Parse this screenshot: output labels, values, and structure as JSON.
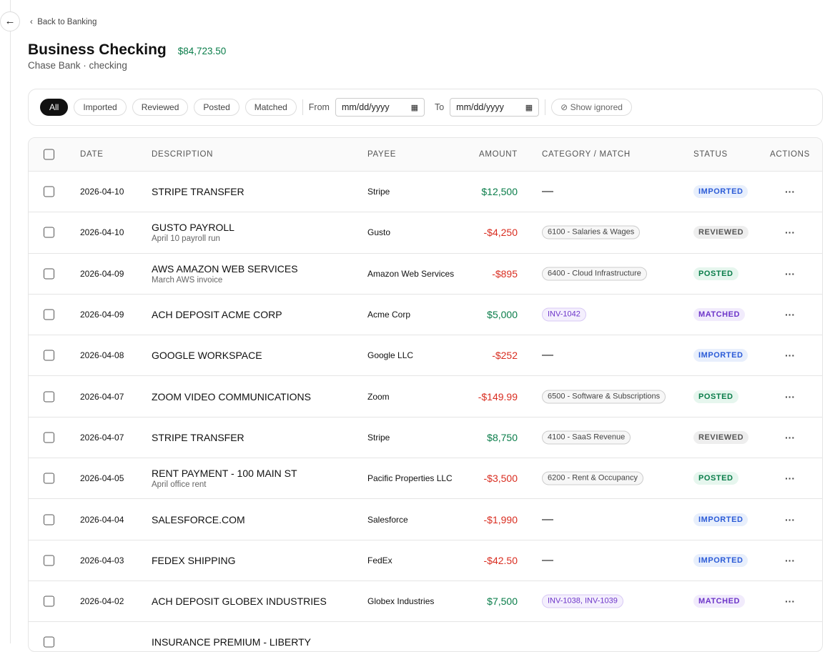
{
  "nav": {
    "back": "Back to Banking"
  },
  "header": {
    "title": "Business Checking",
    "balance": "$84,723.50",
    "subtitle": "Chase Bank · checking"
  },
  "filters": {
    "tabs": [
      "All",
      "Imported",
      "Reviewed",
      "Posted",
      "Matched"
    ],
    "from": "From",
    "date_placeholder": "mm/dd/yyyy",
    "to": "To",
    "show_ignored": "Show ignored"
  },
  "table": {
    "columns": [
      "DATE",
      "DESCRIPTION",
      "PAYEE",
      "AMOUNT",
      "CATEGORY / MATCH",
      "STATUS",
      "ACTIONS"
    ],
    "rows": [
      {
        "date": "2026-04-10",
        "description": "STRIPE TRANSFER",
        "payee": "Stripe",
        "amount": "$12,500",
        "category": "—",
        "status": "IMPORTED"
      },
      {
        "date": "2026-04-10",
        "description": "GUSTO PAYROLL",
        "memo": "April 10 payroll run",
        "payee": "Gusto",
        "amount": "-$4,250",
        "category": "6100 - Salaries & Wages",
        "status": "REVIEWED"
      },
      {
        "date": "2026-04-09",
        "description": "AWS AMAZON WEB SERVICES",
        "memo": "March AWS invoice",
        "payee": "Amazon Web Services",
        "amount": "-$895",
        "category": "6400 - Cloud Infrastructure",
        "status": "POSTED"
      },
      {
        "date": "2026-04-09",
        "description": "ACH DEPOSIT ACME CORP",
        "payee": "Acme Corp",
        "amount": "$5,000",
        "category": "INV-1042",
        "status": "MATCHED"
      },
      {
        "date": "2026-04-08",
        "description": "GOOGLE WORKSPACE",
        "payee": "Google LLC",
        "amount": "-$252",
        "category": "—",
        "status": "IMPORTED"
      },
      {
        "date": "2026-04-07",
        "description": "ZOOM VIDEO COMMUNICATIONS",
        "payee": "Zoom",
        "amount": "-$149.99",
        "category": "6500 - Software & Subscriptions",
        "status": "POSTED"
      },
      {
        "date": "2026-04-07",
        "description": "STRIPE TRANSFER",
        "payee": "Stripe",
        "amount": "$8,750",
        "category": "4100 - SaaS Revenue",
        "status": "REVIEWED"
      },
      {
        "date": "2026-04-05",
        "description": "RENT PAYMENT - 100 MAIN ST",
        "memo": "April office rent",
        "payee": "Pacific Properties LLC",
        "amount": "-$3,500",
        "category": "6200 - Rent & Occupancy",
        "status": "POSTED"
      },
      {
        "date": "2026-04-04",
        "description": "SALESFORCE.COM",
        "payee": "Salesforce",
        "amount": "-$1,990",
        "category": "—",
        "status": "IMPORTED"
      },
      {
        "date": "2026-04-03",
        "description": "FEDEX SHIPPING",
        "payee": "FedEx",
        "amount": "-$42.50",
        "category": "—",
        "status": "IMPORTED"
      },
      {
        "date": "2026-04-02",
        "description": "ACH DEPOSIT GLOBEX INDUSTRIES",
        "payee": "Globex Industries",
        "amount": "$7,500",
        "category": "INV-1038, INV-1039",
        "status": "MATCHED"
      },
      {
        "description": "INSURANCE PREMIUM - LIBERTY"
      }
    ]
  }
}
